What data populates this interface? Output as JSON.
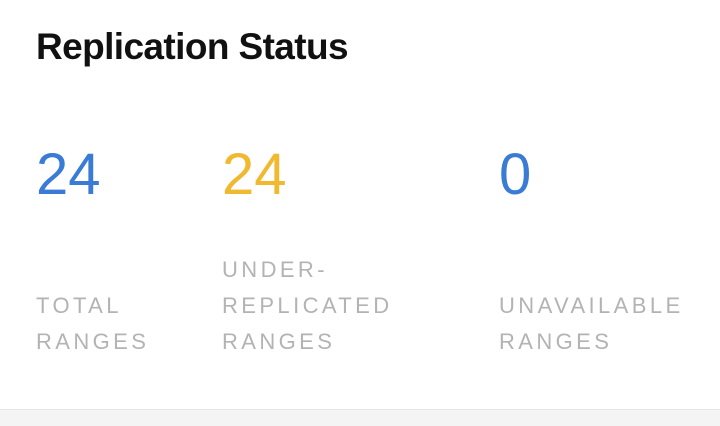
{
  "card": {
    "title": "Replication Status"
  },
  "metrics": [
    {
      "value": "24",
      "label": "TOTAL\nRANGES",
      "color": "#3a7bd5"
    },
    {
      "value": "24",
      "label": "UNDER-\nREPLICATED\nRANGES",
      "color": "#f0b92f"
    },
    {
      "value": "0",
      "label": "UNAVAILABLE\nRANGES",
      "color": "#3a7bd5"
    }
  ]
}
